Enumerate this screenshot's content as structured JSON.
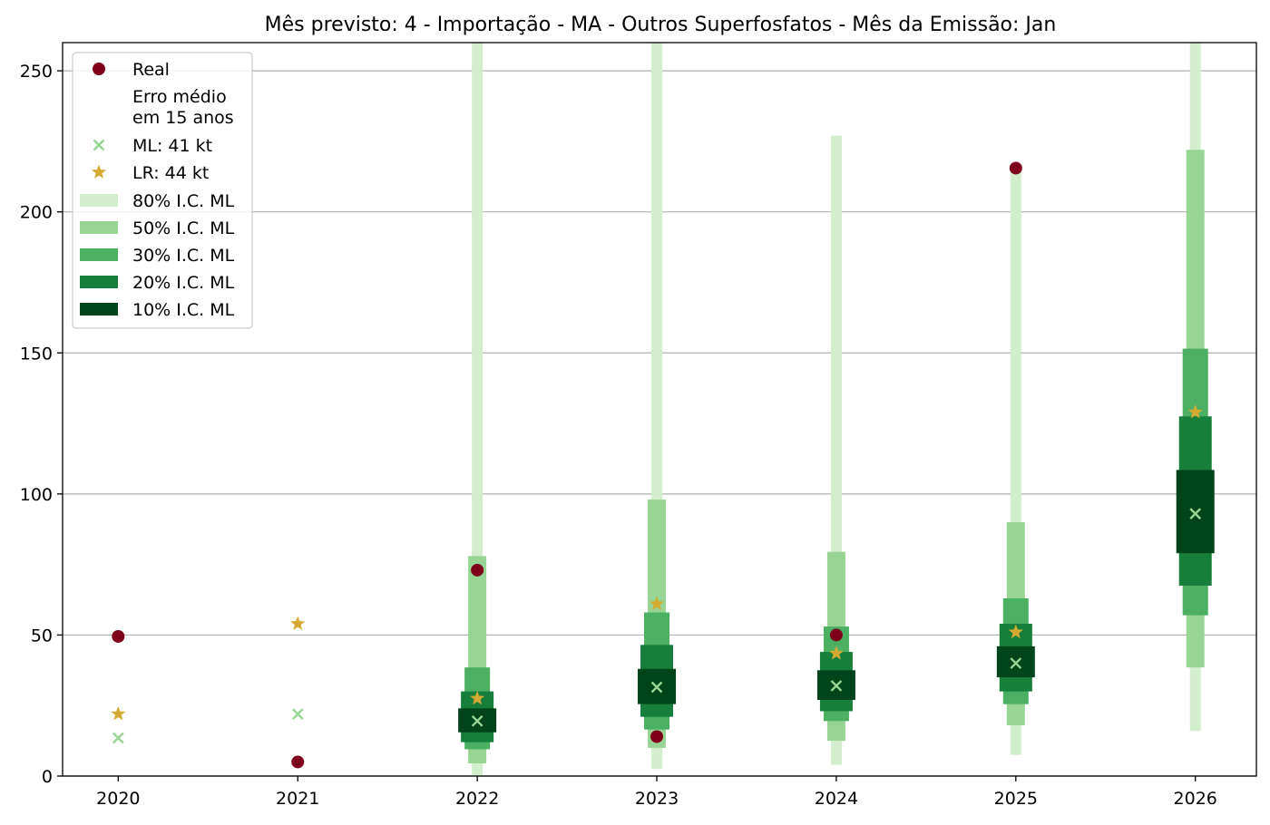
{
  "chart_data": {
    "type": "scatter",
    "title": "Mês previsto: 4 - Importação - MA - Outros Superfosfatos - Mês da Emissão: Jan",
    "xlabel": "",
    "ylabel": "",
    "categories": [
      "2020",
      "2021",
      "2022",
      "2023",
      "2024",
      "2025",
      "2026"
    ],
    "ylim": [
      0,
      260
    ],
    "yticks": [
      0,
      50,
      100,
      150,
      200,
      250
    ],
    "grid": "horizontal",
    "legend_position": "top-left",
    "series": [
      {
        "name": "Real",
        "marker": "circle",
        "color": "#7f0019",
        "values": [
          49.5,
          5,
          73,
          14,
          50,
          215.5,
          null
        ]
      },
      {
        "name": "ML: 41 kt",
        "marker": "x",
        "color": "#98d594",
        "values": [
          13.5,
          22,
          19.5,
          31.5,
          32,
          40,
          93
        ]
      },
      {
        "name": "LR: 44 kt",
        "marker": "star",
        "color": "#d4aa33",
        "values": [
          22,
          54,
          27.5,
          61,
          43.5,
          51,
          129
        ]
      }
    ],
    "intervals": [
      {
        "name": "80% I.C. ML",
        "color": "#d3eecd",
        "ranges": [
          null,
          null,
          [
            0,
            260
          ],
          [
            2.5,
            260
          ],
          [
            4,
            227
          ],
          [
            7.5,
            215
          ],
          [
            16,
            260
          ]
        ]
      },
      {
        "name": "50% I.C. ML",
        "color": "#98d594",
        "ranges": [
          null,
          null,
          [
            4.5,
            78
          ],
          [
            10,
            98
          ],
          [
            12.5,
            79.5
          ],
          [
            18,
            90
          ],
          [
            38.5,
            222
          ]
        ]
      },
      {
        "name": "30% I.C. ML",
        "color": "#4bb062",
        "ranges": [
          null,
          null,
          [
            9.5,
            38.5
          ],
          [
            16.5,
            58
          ],
          [
            19.5,
            53
          ],
          [
            25.5,
            63
          ],
          [
            57,
            151.5
          ]
        ]
      },
      {
        "name": "20% I.C. ML",
        "color": "#157f3b",
        "ranges": [
          null,
          null,
          [
            12,
            30
          ],
          [
            21,
            46.5
          ],
          [
            23,
            44
          ],
          [
            30,
            54
          ],
          [
            67.5,
            127.5
          ]
        ]
      },
      {
        "name": "10% I.C. ML",
        "color": "#00441b",
        "ranges": [
          null,
          null,
          [
            15.5,
            24
          ],
          [
            25.5,
            38
          ],
          [
            27,
            37.5
          ],
          [
            35,
            46
          ],
          [
            79,
            108.5
          ]
        ]
      }
    ],
    "legend": {
      "note_lines": [
        "Erro médio",
        "em 15 anos"
      ]
    }
  }
}
